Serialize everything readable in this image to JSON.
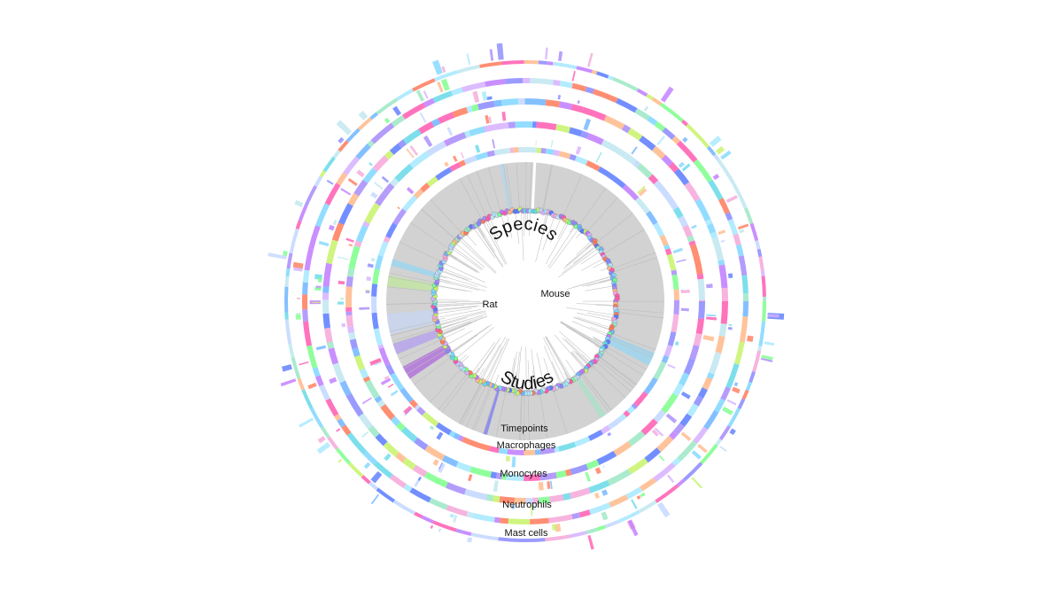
{
  "figure": {
    "arc_labels": {
      "species": "Species",
      "studies": "Studies"
    },
    "species_labels": {
      "rat": "Rat",
      "mouse": "Mouse"
    },
    "ring_labels": {
      "timepoints": "Timepoints",
      "macrophages": "Macrophages",
      "monocytes": "Monocytes",
      "neutrophils": "Neutrophils",
      "mast_cells": "Mast cells"
    },
    "palette": [
      "#ff5ab0",
      "#7fd7ff",
      "#c7f36a",
      "#a78bfa",
      "#5a7bff",
      "#bfe6f0",
      "#f5a7d8",
      "#9be7c4",
      "#c07bff",
      "#ffb98a",
      "#6fb5ff",
      "#7bff8a",
      "#c2d7ff",
      "#a6e8ff",
      "#ff7a5a",
      "#d6b0ff",
      "#8a8aff",
      "#66d9e8"
    ]
  }
}
